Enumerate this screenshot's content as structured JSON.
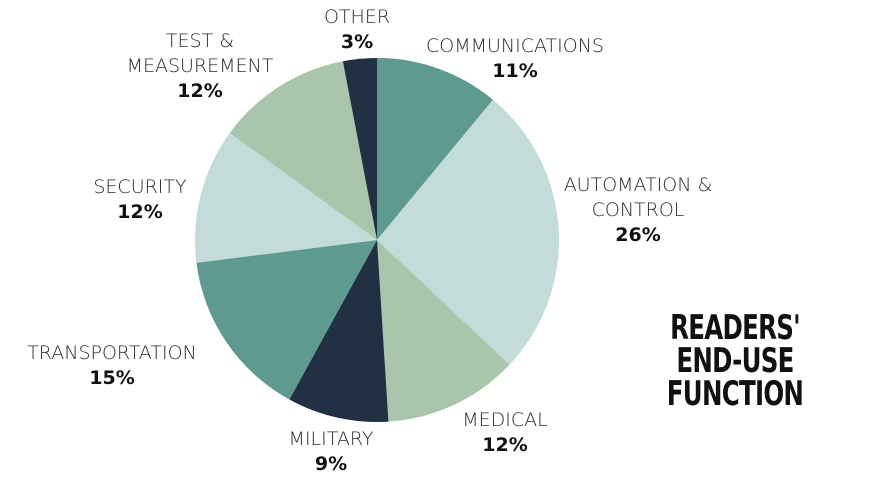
{
  "chart_data": {
    "type": "pie",
    "title": "READERS' END-USE FUNCTION",
    "categories": [
      "COMMUNICATIONS",
      "AUTOMATION & CONTROL",
      "MEDICAL",
      "MILITARY",
      "TRANSPORTATION",
      "SECURITY",
      "TEST & MEASUREMENT",
      "OTHER"
    ],
    "values": [
      11,
      26,
      12,
      9,
      15,
      12,
      12,
      3
    ],
    "value_labels": [
      "11%",
      "26%",
      "12%",
      "9%",
      "15%",
      "12%",
      "12%",
      "3%"
    ],
    "colors": [
      "#5f9a90",
      "#c3dcd9",
      "#a9c5ac",
      "#213143",
      "#5f9a90",
      "#c3dcd9",
      "#a9c5ac",
      "#213143"
    ]
  }
}
